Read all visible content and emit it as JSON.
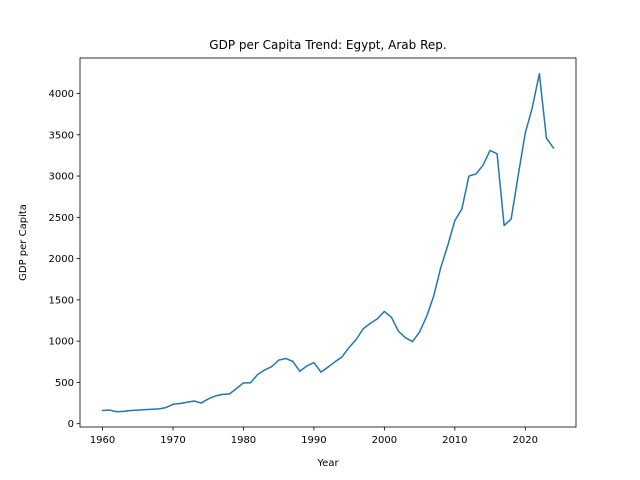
{
  "chart_data": {
    "type": "line",
    "title": "GDP per Capita Trend: Egypt, Arab Rep.",
    "xlabel": "Year",
    "ylabel": "GDP per Capita",
    "xlim": [
      1956.8,
      2027.2
    ],
    "ylim": [
      -40,
      4430
    ],
    "xticks": [
      1960,
      1970,
      1980,
      1990,
      2000,
      2010,
      2020
    ],
    "yticks": [
      0,
      500,
      1000,
      1500,
      2000,
      2500,
      3000,
      3500,
      4000
    ],
    "grid": false,
    "series": [
      {
        "color": "#1f77b4",
        "x": [
          1960,
          1961,
          1962,
          1963,
          1964,
          1965,
          1966,
          1967,
          1968,
          1969,
          1970,
          1971,
          1972,
          1973,
          1974,
          1975,
          1976,
          1977,
          1978,
          1979,
          1980,
          1981,
          1982,
          1983,
          1984,
          1985,
          1986,
          1987,
          1988,
          1989,
          1990,
          1991,
          1992,
          1993,
          1994,
          1995,
          1996,
          1997,
          1998,
          1999,
          2000,
          2001,
          2002,
          2003,
          2004,
          2005,
          2006,
          2007,
          2008,
          2009,
          2010,
          2011,
          2012,
          2013,
          2014,
          2015,
          2016,
          2017,
          2018,
          2019,
          2020,
          2021,
          2022,
          2023,
          2024
        ],
        "y": [
          160,
          165,
          145,
          150,
          160,
          165,
          170,
          175,
          180,
          195,
          235,
          245,
          260,
          275,
          250,
          300,
          335,
          355,
          360,
          425,
          495,
          495,
          595,
          650,
          690,
          770,
          790,
          755,
          635,
          700,
          740,
          625,
          685,
          750,
          810,
          925,
          1020,
          1150,
          1215,
          1270,
          1360,
          1290,
          1120,
          1040,
          995,
          1110,
          1300,
          1545,
          1890,
          2160,
          2460,
          2600,
          3000,
          3025,
          3130,
          3310,
          3270,
          2400,
          2480,
          3010,
          3520,
          3830,
          4240,
          3460,
          3340
        ]
      }
    ]
  }
}
